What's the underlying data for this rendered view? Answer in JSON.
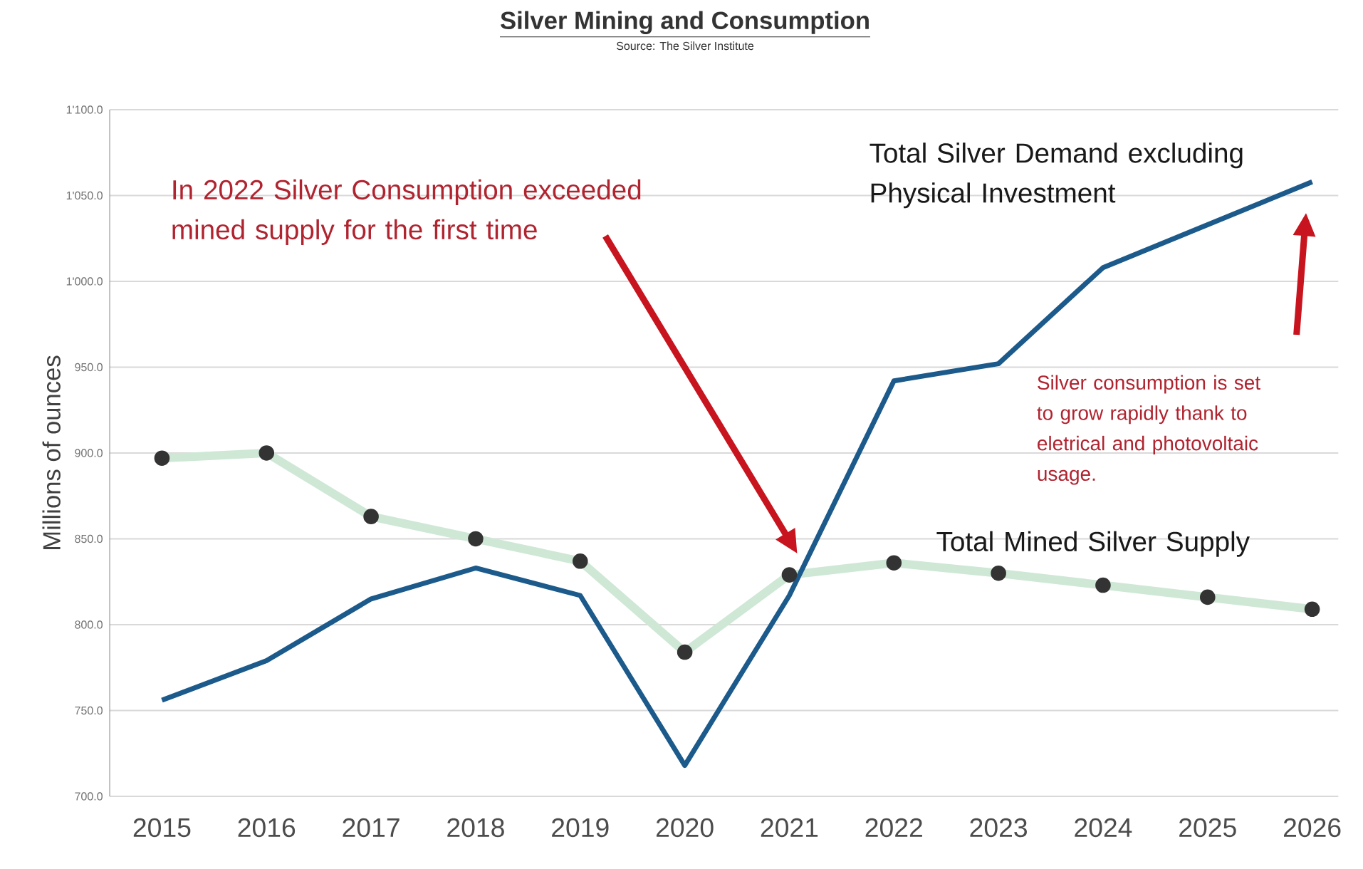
{
  "chart_data": {
    "type": "line",
    "title": "Silver Mining and Consumption",
    "subtitle": "Source: The Silver Institute",
    "ylabel": "Millions of ounces",
    "categories": [
      "2015",
      "2016",
      "2017",
      "2018",
      "2019",
      "2020",
      "2021",
      "2022",
      "2023",
      "2024",
      "2025",
      "2026"
    ],
    "series": [
      {
        "name": "Total Silver Demand excluding Physical Investment",
        "color": "#1b5a8a",
        "marker": "none",
        "values": [
          756,
          779,
          815,
          833,
          817,
          718,
          817,
          942,
          952,
          1008,
          1033,
          1058
        ]
      },
      {
        "name": "Total Mined Silver Supply",
        "color": "#cfe8d6",
        "marker": "circle",
        "values": [
          897,
          900,
          863,
          850,
          837,
          784,
          829,
          836,
          830,
          823,
          816,
          809
        ]
      }
    ],
    "ylim": [
      700,
      1100
    ],
    "yticks": [
      {
        "value": 700,
        "label": "700.0"
      },
      {
        "value": 750,
        "label": "750.0"
      },
      {
        "value": 800,
        "label": "800.0"
      },
      {
        "value": 850,
        "label": "850.0"
      },
      {
        "value": 900,
        "label": "900.0"
      },
      {
        "value": 950,
        "label": "950.0"
      },
      {
        "value": 1000,
        "label": "1'000.0"
      },
      {
        "value": 1050,
        "label": "1'050.0"
      },
      {
        "value": 1100,
        "label": "1'100.0"
      }
    ],
    "grid": "y",
    "legend": false,
    "annotations": [
      "In 2022 Silver Consumption exceeded mined supply for the first time",
      "Silver consumption is set to grow rapidly thank to eletrical and photovoltaic usage."
    ]
  }
}
